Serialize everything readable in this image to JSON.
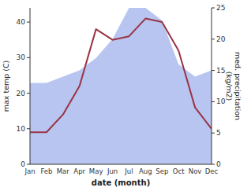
{
  "chart_data": {
    "type": "line",
    "categories": [
      "Jan",
      "Feb",
      "Mar",
      "Apr",
      "May",
      "Jun",
      "Jul",
      "Aug",
      "Sep",
      "Oct",
      "Nov",
      "Dec"
    ],
    "xlabel": "date (month)",
    "ylabel": "max temp (C)",
    "y2label": "med. precipitation\n(kg/m2)",
    "ylim": [
      0,
      44
    ],
    "yticks": [
      0,
      10,
      20,
      30,
      40
    ],
    "y2lim": [
      0,
      25
    ],
    "y2ticks": [
      0,
      5,
      10,
      15,
      20,
      25
    ],
    "grid": false,
    "series": [
      {
        "type": "area",
        "axis": "y2",
        "color": "#b8c5f0",
        "values": [
          13,
          13,
          14,
          15,
          17,
          20,
          25,
          25,
          23,
          16,
          14,
          15
        ]
      },
      {
        "type": "line",
        "color": "#993344",
        "values": [
          9,
          9,
          14,
          22,
          38,
          35,
          36,
          41,
          40,
          32,
          16,
          10
        ]
      }
    ]
  }
}
